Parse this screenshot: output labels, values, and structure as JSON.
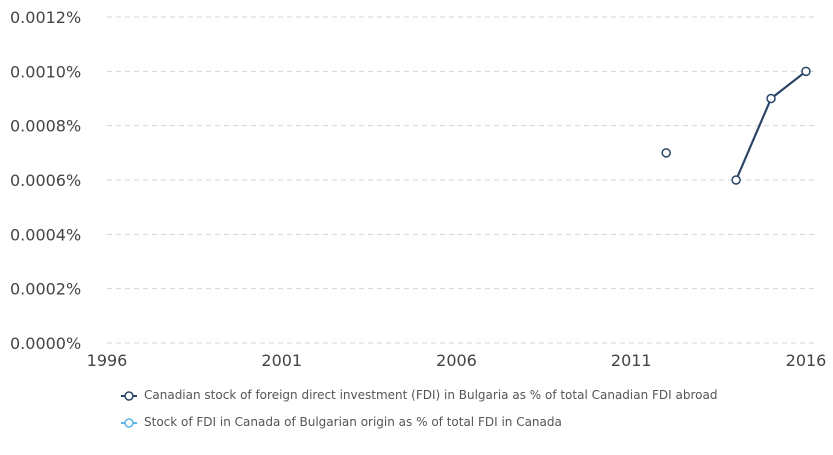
{
  "chart_data": {
    "type": "line",
    "title": "",
    "xlabel": "",
    "ylabel": "",
    "xlim": [
      1996,
      2016
    ],
    "ylim": [
      0,
      0.0012
    ],
    "x_ticks": [
      "1996",
      "2001",
      "2006",
      "2011",
      "2016"
    ],
    "y_ticks": [
      "0.0000%",
      "0.0002%",
      "0.0004%",
      "0.0006%",
      "0.0008%",
      "0.0010%",
      "0.0012%"
    ],
    "grid": true,
    "legend_position": "bottom",
    "series": [
      {
        "name": "Canadian stock of foreign direct investment (FDI) in Bulgaria as % of total Canadian FDI abroad",
        "color": "#2b4566",
        "x": [
          2012,
          2014,
          2015,
          2016
        ],
        "y": [
          0.0007,
          0.0006,
          0.0009,
          0.001
        ],
        "connected_segments": [
          [
            2014,
            2015
          ],
          [
            2015,
            2016
          ]
        ]
      },
      {
        "name": "Stock of FDI in Canada of Bulgarian origin as % of total FDI in Canada",
        "color": "#5bb6ea",
        "x": [],
        "y": []
      }
    ]
  }
}
